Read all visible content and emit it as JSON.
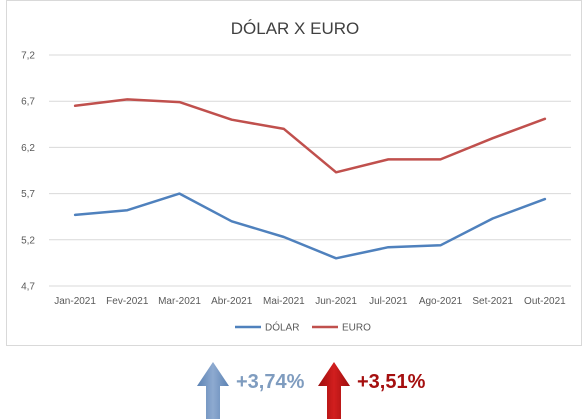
{
  "chart_data": {
    "type": "line",
    "title": "DÓLAR X EURO",
    "categories": [
      "Jan-2021",
      "Fev-2021",
      "Mar-2021",
      "Abr-2021",
      "Mai-2021",
      "Jun-2021",
      "Jul-2021",
      "Ago-2021",
      "Set-2021",
      "Out-2021"
    ],
    "ylim": [
      4.7,
      7.2
    ],
    "yticks": [
      "4,7",
      "5,2",
      "5,7",
      "6,2",
      "6,7",
      "7,2"
    ],
    "ytick_values": [
      4.7,
      5.2,
      5.7,
      6.2,
      6.7,
      7.2
    ],
    "grid": true,
    "legend": "bottom",
    "series": [
      {
        "name": "DÓLAR",
        "color": "#4f81bd",
        "values": [
          5.47,
          5.52,
          5.7,
          5.4,
          5.23,
          5.0,
          5.12,
          5.14,
          5.43,
          5.64
        ]
      },
      {
        "name": "EURO",
        "color": "#c0504d",
        "values": [
          6.65,
          6.72,
          6.69,
          6.5,
          6.4,
          5.93,
          6.07,
          6.07,
          6.3,
          6.51
        ]
      }
    ]
  },
  "summary": {
    "dolar": {
      "label": "+3,74%",
      "color": "#7f9cbf",
      "icon": "up-arrow-icon"
    },
    "euro": {
      "label": "+3,51%",
      "color": "#a50f0f",
      "icon": "up-arrow-icon"
    }
  }
}
